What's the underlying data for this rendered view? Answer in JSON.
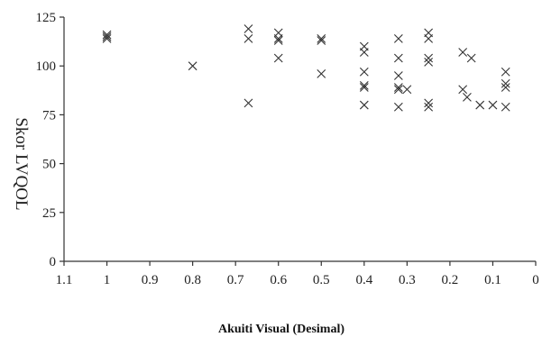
{
  "chart_data": {
    "type": "scatter",
    "xlabel": "Akuiti Visual (Desimal)",
    "ylabel": "Skor LVQOL",
    "xlim": [
      1.1,
      0
    ],
    "x_reversed": true,
    "ylim": [
      0,
      125
    ],
    "x_ticks": [
      "1.1",
      "1",
      "0.9",
      "0.8",
      "0.7",
      "0.6",
      "0.5",
      "0.4",
      "0.3",
      "0.2",
      "0.1",
      "0"
    ],
    "x_tick_values": [
      1.1,
      1.0,
      0.9,
      0.8,
      0.7,
      0.6,
      0.5,
      0.4,
      0.3,
      0.2,
      0.1,
      0.0
    ],
    "y_ticks": [
      "0",
      "25",
      "50",
      "75",
      "100",
      "125"
    ],
    "y_tick_values": [
      0,
      25,
      50,
      75,
      100,
      125
    ],
    "grid": false,
    "marker": "x",
    "points": [
      [
        1.0,
        116
      ],
      [
        1.0,
        115
      ],
      [
        1.0,
        114
      ],
      [
        0.8,
        100
      ],
      [
        0.67,
        119
      ],
      [
        0.67,
        114
      ],
      [
        0.67,
        81
      ],
      [
        0.6,
        117
      ],
      [
        0.6,
        114
      ],
      [
        0.6,
        113
      ],
      [
        0.6,
        104
      ],
      [
        0.5,
        114
      ],
      [
        0.5,
        113
      ],
      [
        0.5,
        96
      ],
      [
        0.4,
        110
      ],
      [
        0.4,
        107
      ],
      [
        0.4,
        97
      ],
      [
        0.4,
        90
      ],
      [
        0.4,
        89
      ],
      [
        0.4,
        80
      ],
      [
        0.32,
        114
      ],
      [
        0.32,
        104
      ],
      [
        0.32,
        95
      ],
      [
        0.32,
        89
      ],
      [
        0.32,
        88
      ],
      [
        0.32,
        79
      ],
      [
        0.3,
        88
      ],
      [
        0.25,
        117
      ],
      [
        0.25,
        114
      ],
      [
        0.25,
        104
      ],
      [
        0.25,
        102
      ],
      [
        0.25,
        81
      ],
      [
        0.25,
        79
      ],
      [
        0.17,
        107
      ],
      [
        0.17,
        88
      ],
      [
        0.16,
        84
      ],
      [
        0.15,
        104
      ],
      [
        0.13,
        80
      ],
      [
        0.1,
        80
      ],
      [
        0.07,
        97
      ],
      [
        0.07,
        91
      ],
      [
        0.07,
        89
      ],
      [
        0.07,
        79
      ]
    ]
  }
}
